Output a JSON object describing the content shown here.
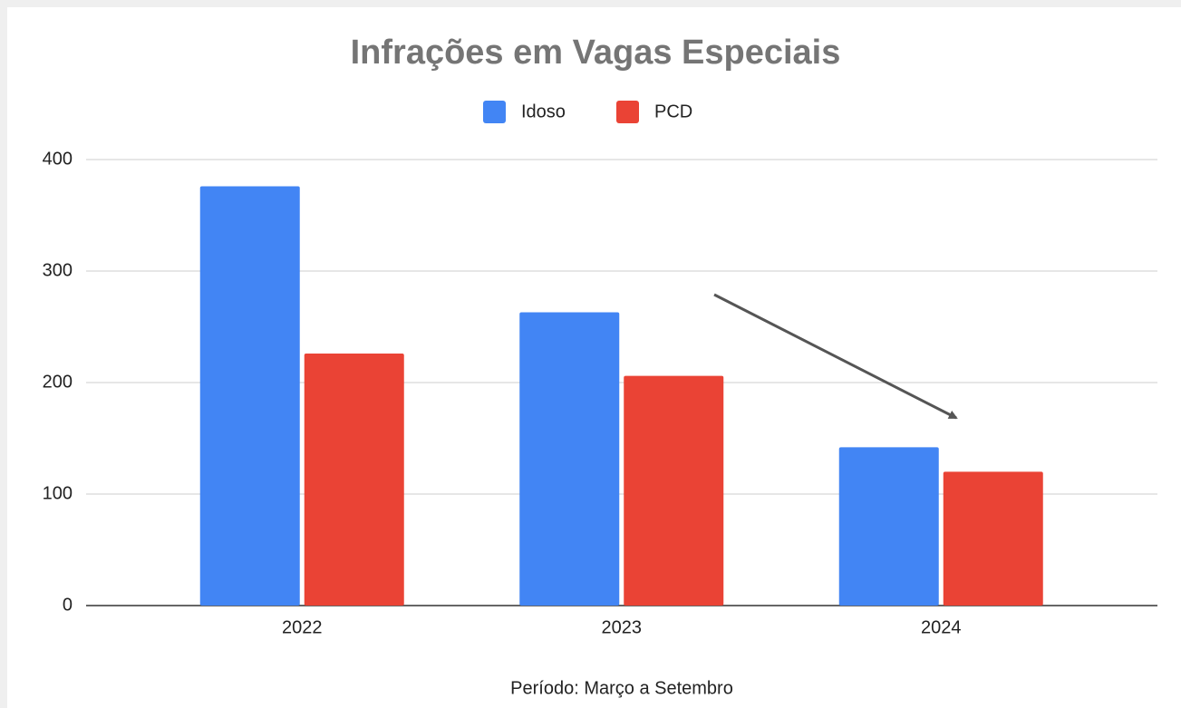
{
  "chart_data": {
    "type": "bar",
    "title": "Infrações em Vagas Especiais",
    "x_label": "Período: Março a Setembro",
    "categories": [
      "2022",
      "2023",
      "2024"
    ],
    "series": [
      {
        "name": "Idoso",
        "color": "#4285f4",
        "values": [
          376,
          263,
          142
        ]
      },
      {
        "name": "PCD",
        "color": "#ea4335",
        "values": [
          226,
          206,
          120
        ]
      }
    ],
    "ylim": [
      0,
      400
    ],
    "yticks": [
      0,
      100,
      200,
      300,
      400
    ],
    "grid": true,
    "legend": "top"
  }
}
